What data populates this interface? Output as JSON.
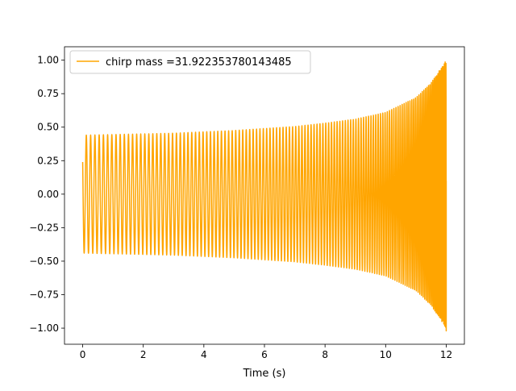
{
  "chart_data": {
    "type": "line",
    "title": "",
    "xlabel": "Time (s)",
    "ylabel": "",
    "xlim": [
      -0.6,
      12.6
    ],
    "ylim": [
      -1.12,
      1.1
    ],
    "x_ticks": [
      0,
      2,
      4,
      6,
      8,
      10,
      12
    ],
    "x_tick_labels": [
      "0",
      "2",
      "4",
      "6",
      "8",
      "10",
      "12"
    ],
    "y_ticks": [
      -1.0,
      -0.75,
      -0.5,
      -0.25,
      0.0,
      0.25,
      0.5,
      0.75,
      1.0
    ],
    "y_tick_labels": [
      "−1.00",
      "−0.75",
      "−0.50",
      "−0.25",
      "0.00",
      "0.25",
      "0.50",
      "0.75",
      "1.00"
    ],
    "grid": false,
    "legend_position": "top-left",
    "series": [
      {
        "name": "chirp mass =31.922353780143485",
        "color": "#ffa500",
        "t_start": 0.0,
        "t_end": 12.0,
        "amplitude_envelope": [
          [
            0.0,
            0.44
          ],
          [
            1,
            0.445
          ],
          [
            2,
            0.45
          ],
          [
            3,
            0.455
          ],
          [
            4,
            0.465
          ],
          [
            5,
            0.475
          ],
          [
            6,
            0.49
          ],
          [
            7,
            0.505
          ],
          [
            8,
            0.53
          ],
          [
            9,
            0.56
          ],
          [
            10,
            0.61
          ],
          [
            11,
            0.72
          ],
          [
            11.5,
            0.83
          ],
          [
            12.0,
            1.0
          ]
        ],
        "final_value": 0.1
      }
    ]
  }
}
